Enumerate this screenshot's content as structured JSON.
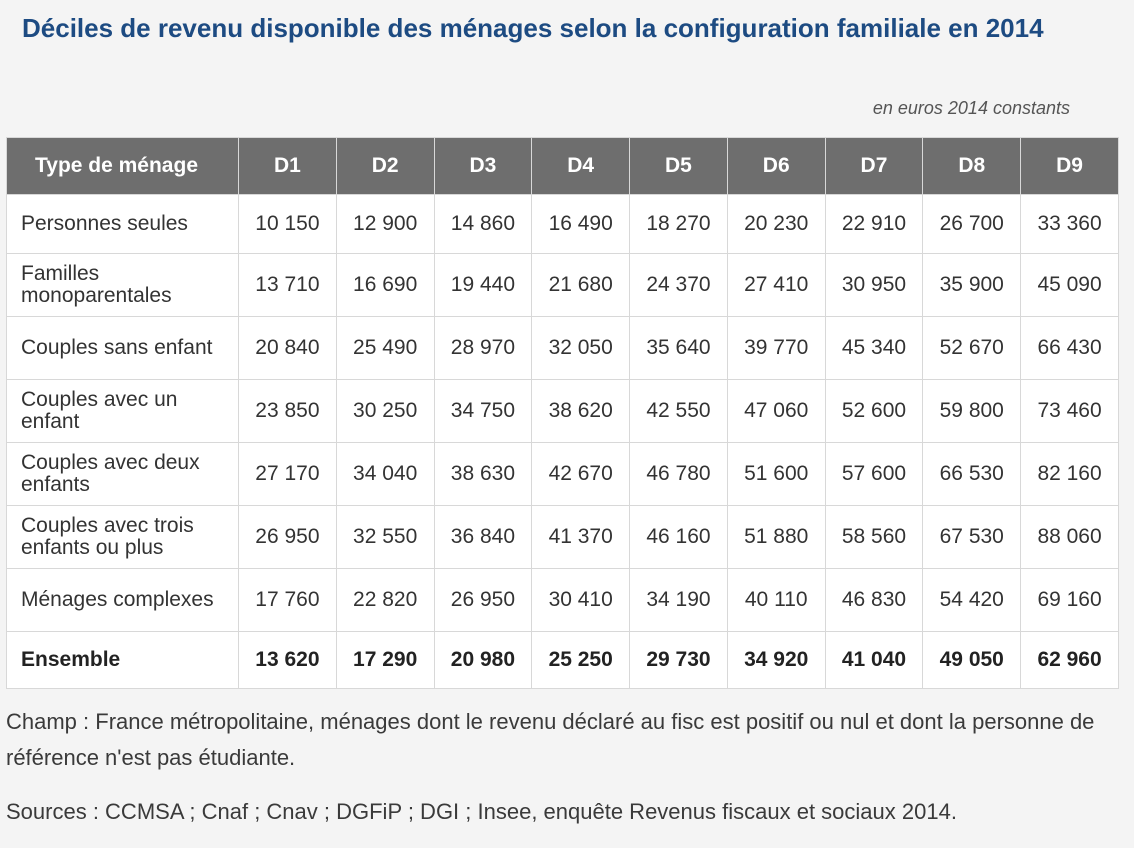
{
  "title": "Déciles de revenu disponible des ménages selon la configuration familiale en 2014",
  "unit_note": "en euros 2014 constants",
  "table": {
    "headers": [
      "Type de ménage",
      "D1",
      "D2",
      "D3",
      "D4",
      "D5",
      "D6",
      "D7",
      "D8",
      "D9"
    ],
    "rows": [
      {
        "label": "Personnes seules",
        "values": [
          "10 150",
          "12 900",
          "14 860",
          "16 490",
          "18 270",
          "20 230",
          "22 910",
          "26 700",
          "33 360"
        ]
      },
      {
        "label": "Familles monoparentales",
        "values": [
          "13 710",
          "16 690",
          "19 440",
          "21 680",
          "24 370",
          "27 410",
          "30 950",
          "35 900",
          "45 090"
        ]
      },
      {
        "label": "Couples sans enfant",
        "values": [
          "20 840",
          "25 490",
          "28 970",
          "32 050",
          "35 640",
          "39 770",
          "45 340",
          "52 670",
          "66 430"
        ]
      },
      {
        "label": "Couples avec un enfant",
        "values": [
          "23 850",
          "30 250",
          "34 750",
          "38 620",
          "42 550",
          "47 060",
          "52 600",
          "59 800",
          "73 460"
        ]
      },
      {
        "label": "Couples avec deux enfants",
        "values": [
          "27 170",
          "34 040",
          "38 630",
          "42 670",
          "46 780",
          "51 600",
          "57 600",
          "66 530",
          "82 160"
        ]
      },
      {
        "label": "Couples avec trois enfants ou plus",
        "values": [
          "26 950",
          "32 550",
          "36 840",
          "41 370",
          "46 160",
          "51 880",
          "58 560",
          "67 530",
          "88 060"
        ]
      },
      {
        "label": "Ménages complexes",
        "values": [
          "17 760",
          "22 820",
          "26 950",
          "30 410",
          "34 190",
          "40 110",
          "46 830",
          "54 420",
          "69 160"
        ]
      }
    ],
    "total": {
      "label": "Ensemble",
      "values": [
        "13 620",
        "17 290",
        "20 980",
        "25 250",
        "29 730",
        "34 920",
        "41 040",
        "49 050",
        "62 960"
      ]
    }
  },
  "notes": {
    "champ": "Champ : France métropolitaine, ménages dont le revenu déclaré au fisc est positif ou nul et dont la personne de référence n'est pas étudiante.",
    "sources": "Sources : CCMSA ; Cnaf ; Cnav ; DGFiP ; DGI ; Insee, enquête Revenus fiscaux et sociaux 2014."
  }
}
